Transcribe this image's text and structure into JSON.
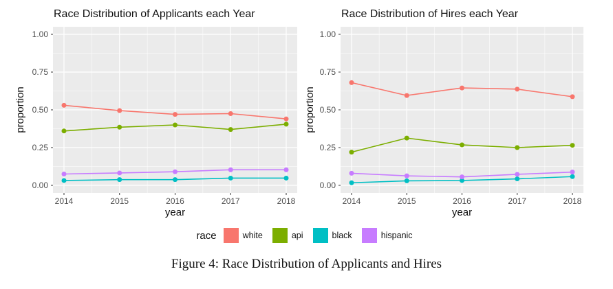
{
  "figure": {
    "caption": "Figure 4: Race Distribution of Applicants and Hires"
  },
  "legend": {
    "title": "race",
    "entries": [
      {
        "label": "white",
        "color": "#F8766D"
      },
      {
        "label": "api",
        "color": "#7CAE00"
      },
      {
        "label": "black",
        "color": "#00BFC4"
      },
      {
        "label": "hispanic",
        "color": "#C77CFF"
      }
    ]
  },
  "theme": {
    "panel_bg": "#EBEBEB",
    "grid_color": "#FFFFFF",
    "tick_color": "#333333",
    "tick_label_color": "#4D4D4D"
  },
  "chart_data": [
    {
      "type": "line",
      "title": "Race Distribution of Applicants each Year",
      "xlabel": "year",
      "ylabel": "proportion",
      "x": [
        2014,
        2015,
        2016,
        2017,
        2018
      ],
      "x_tick_labels": [
        "2014",
        "2015",
        "2016",
        "2017",
        "2018"
      ],
      "ylim": [
        0,
        1
      ],
      "y_tick_labels": [
        "0.00",
        "0.25",
        "0.50",
        "0.75",
        "1.00"
      ],
      "y_ticks": [
        0,
        0.25,
        0.5,
        0.75,
        1.0
      ],
      "y_minor_ticks": [
        0.125,
        0.375,
        0.625,
        0.875
      ],
      "grid": true,
      "legend_position": "none",
      "series": [
        {
          "name": "white",
          "color": "#F8766D",
          "values": [
            0.53,
            0.495,
            0.47,
            0.475,
            0.44
          ]
        },
        {
          "name": "api",
          "color": "#7CAE00",
          "values": [
            0.36,
            0.385,
            0.4,
            0.37,
            0.405
          ]
        },
        {
          "name": "black",
          "color": "#00BFC4",
          "values": [
            0.032,
            0.038,
            0.038,
            0.048,
            0.048
          ]
        },
        {
          "name": "hispanic",
          "color": "#C77CFF",
          "values": [
            0.075,
            0.082,
            0.09,
            0.103,
            0.103
          ]
        }
      ]
    },
    {
      "type": "line",
      "title": "Race Distribution of Hires each Year",
      "xlabel": "year",
      "ylabel": "proportion",
      "x": [
        2014,
        2015,
        2016,
        2017,
        2018
      ],
      "x_tick_labels": [
        "2014",
        "2015",
        "2016",
        "2017",
        "2018"
      ],
      "ylim": [
        0,
        1
      ],
      "y_tick_labels": [
        "0.00",
        "0.25",
        "0.50",
        "0.75",
        "1.00"
      ],
      "y_ticks": [
        0,
        0.25,
        0.5,
        0.75,
        1.0
      ],
      "y_minor_ticks": [
        0.125,
        0.375,
        0.625,
        0.875
      ],
      "grid": true,
      "legend_position": "none",
      "series": [
        {
          "name": "white",
          "color": "#F8766D",
          "values": [
            0.68,
            0.595,
            0.645,
            0.637,
            0.587
          ]
        },
        {
          "name": "api",
          "color": "#7CAE00",
          "values": [
            0.22,
            0.313,
            0.268,
            0.25,
            0.265
          ]
        },
        {
          "name": "black",
          "color": "#00BFC4",
          "values": [
            0.017,
            0.03,
            0.032,
            0.043,
            0.058
          ]
        },
        {
          "name": "hispanic",
          "color": "#C77CFF",
          "values": [
            0.08,
            0.063,
            0.056,
            0.073,
            0.088
          ]
        }
      ]
    }
  ]
}
